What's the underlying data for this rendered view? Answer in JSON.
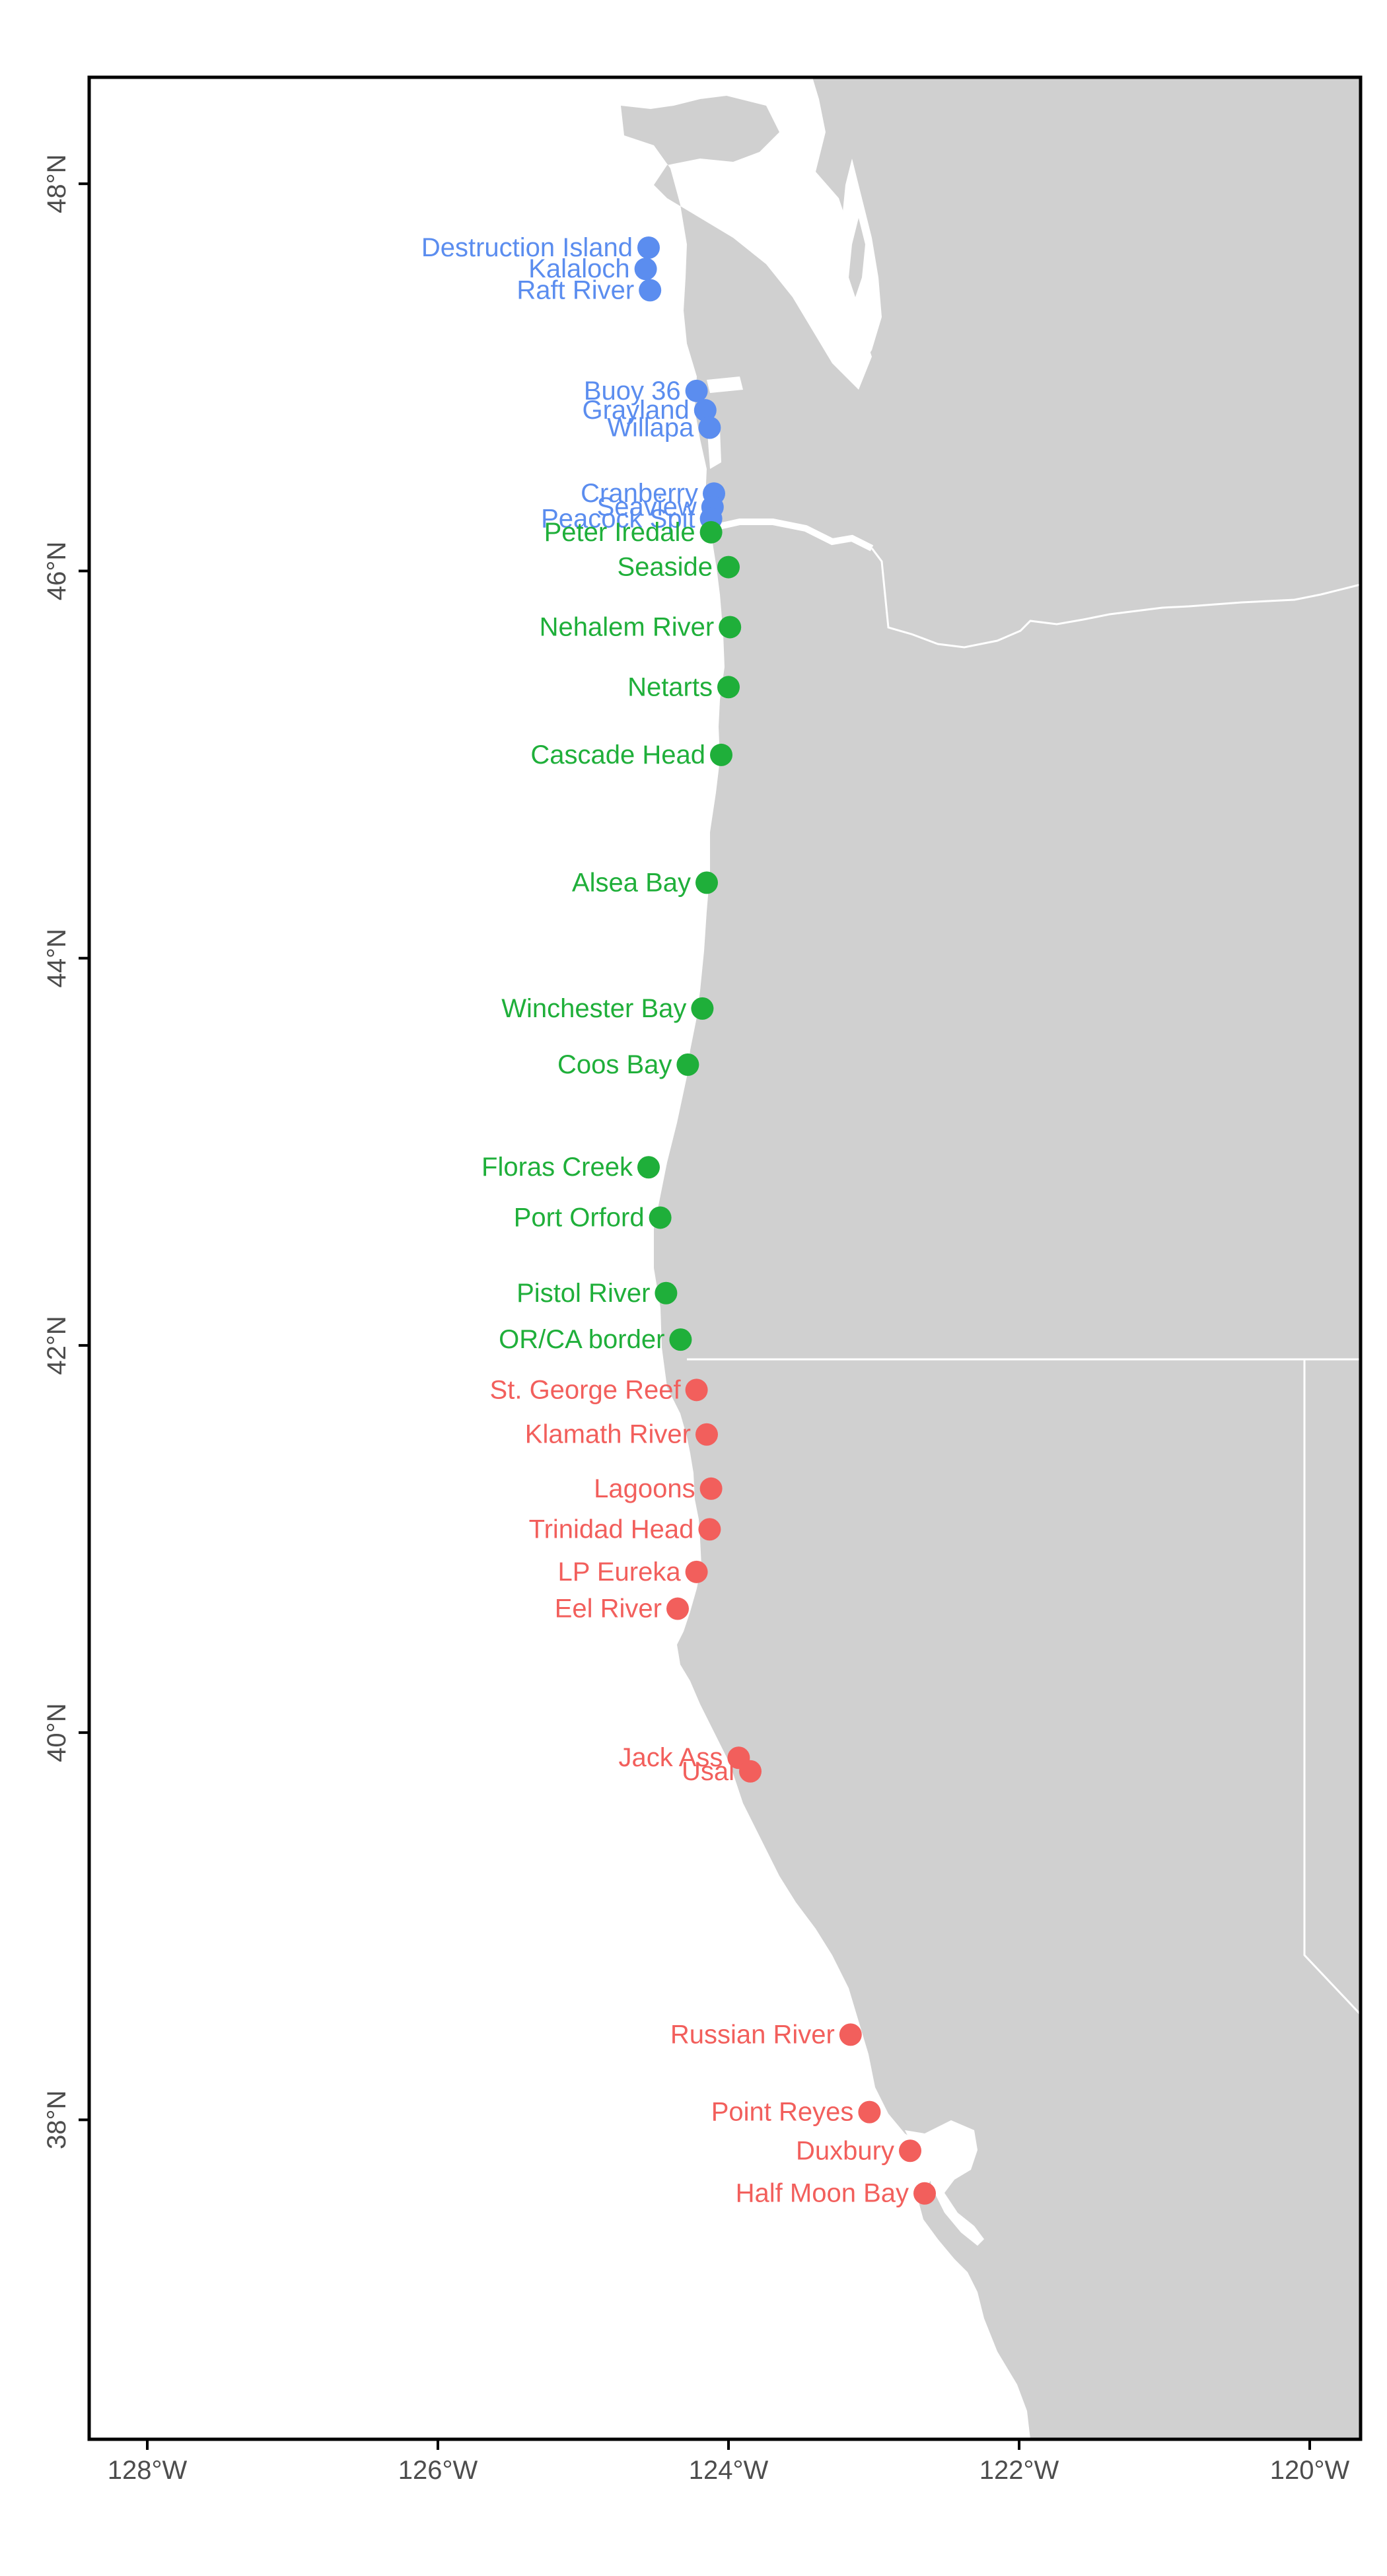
{
  "map": {
    "colors": {
      "washington": "#5B8DEF",
      "oregon": "#1FAF3A",
      "california": "#F25F5C",
      "land": "#d0d0d0",
      "water": "#ffffff",
      "border": "#ffffff",
      "axis": "#000000",
      "tick_text": "#4d4d4d"
    },
    "x_axis": {
      "range": [
        -128.4,
        -119.65
      ],
      "ticks": [
        {
          "value": -128,
          "label": "128°W"
        },
        {
          "value": -126,
          "label": "126°W"
        },
        {
          "value": -124,
          "label": "124°W"
        },
        {
          "value": -122,
          "label": "122°W"
        },
        {
          "value": -120,
          "label": "120°W"
        }
      ]
    },
    "y_axis": {
      "range": [
        36.35,
        48.55
      ],
      "ticks": [
        {
          "value": 38,
          "label": "38°N"
        },
        {
          "value": 40,
          "label": "40°N"
        },
        {
          "value": 42,
          "label": "42°N"
        },
        {
          "value": 44,
          "label": "44°N"
        },
        {
          "value": 46,
          "label": "46°N"
        },
        {
          "value": 48,
          "label": "48°N"
        }
      ]
    },
    "sites": [
      {
        "name": "Destruction Island",
        "lon": -124.55,
        "lat": 47.67,
        "region": "washington"
      },
      {
        "name": "Kalaloch",
        "lon": -124.57,
        "lat": 47.56,
        "region": "washington"
      },
      {
        "name": "Raft River",
        "lon": -124.54,
        "lat": 47.45,
        "region": "washington"
      },
      {
        "name": "Buoy 36",
        "lon": -124.22,
        "lat": 46.93,
        "region": "washington"
      },
      {
        "name": "Grayland",
        "lon": -124.16,
        "lat": 46.83,
        "region": "washington"
      },
      {
        "name": "Willapa",
        "lon": -124.13,
        "lat": 46.74,
        "region": "washington"
      },
      {
        "name": "Cranberry",
        "lon": -124.1,
        "lat": 46.4,
        "region": "washington"
      },
      {
        "name": "Seaview",
        "lon": -124.11,
        "lat": 46.33,
        "region": "washington"
      },
      {
        "name": "Peacock Spit",
        "lon": -124.12,
        "lat": 46.27,
        "region": "washington"
      },
      {
        "name": "Peter Iredale",
        "lon": -124.12,
        "lat": 46.2,
        "region": "oregon"
      },
      {
        "name": "Seaside",
        "lon": -124.0,
        "lat": 46.02,
        "region": "oregon"
      },
      {
        "name": "Nehalem River",
        "lon": -123.99,
        "lat": 45.71,
        "region": "oregon"
      },
      {
        "name": "Netarts",
        "lon": -124.0,
        "lat": 45.4,
        "region": "oregon"
      },
      {
        "name": "Cascade Head",
        "lon": -124.05,
        "lat": 45.05,
        "region": "oregon"
      },
      {
        "name": "Alsea Bay",
        "lon": -124.15,
        "lat": 44.39,
        "region": "oregon"
      },
      {
        "name": "Winchester Bay",
        "lon": -124.18,
        "lat": 43.74,
        "region": "oregon"
      },
      {
        "name": "Coos Bay",
        "lon": -124.28,
        "lat": 43.45,
        "region": "oregon"
      },
      {
        "name": "Floras Creek",
        "lon": -124.55,
        "lat": 42.92,
        "region": "oregon"
      },
      {
        "name": "Port Orford",
        "lon": -124.47,
        "lat": 42.66,
        "region": "oregon"
      },
      {
        "name": "Pistol River",
        "lon": -124.43,
        "lat": 42.27,
        "region": "oregon"
      },
      {
        "name": "OR/CA border",
        "lon": -124.33,
        "lat": 42.03,
        "region": "oregon"
      },
      {
        "name": "St. George Reef",
        "lon": -124.22,
        "lat": 41.77,
        "region": "california"
      },
      {
        "name": "Klamath River",
        "lon": -124.15,
        "lat": 41.54,
        "region": "california"
      },
      {
        "name": "Lagoons",
        "lon": -124.12,
        "lat": 41.26,
        "region": "california"
      },
      {
        "name": "Trinidad Head",
        "lon": -124.13,
        "lat": 41.05,
        "region": "california"
      },
      {
        "name": "LP Eureka",
        "lon": -124.22,
        "lat": 40.83,
        "region": "california"
      },
      {
        "name": "Eel River",
        "lon": -124.35,
        "lat": 40.64,
        "region": "california"
      },
      {
        "name": "Jack Ass",
        "lon": -123.93,
        "lat": 39.87,
        "region": "california"
      },
      {
        "name": "Usal",
        "lon": -123.85,
        "lat": 39.8,
        "region": "california"
      },
      {
        "name": "Russian River",
        "lon": -123.16,
        "lat": 38.44,
        "region": "california"
      },
      {
        "name": "Point Reyes",
        "lon": -123.03,
        "lat": 38.04,
        "region": "california"
      },
      {
        "name": "Duxbury",
        "lon": -122.75,
        "lat": 37.84,
        "region": "california"
      },
      {
        "name": "Half Moon Bay",
        "lon": -122.65,
        "lat": 37.62,
        "region": "california"
      }
    ]
  }
}
